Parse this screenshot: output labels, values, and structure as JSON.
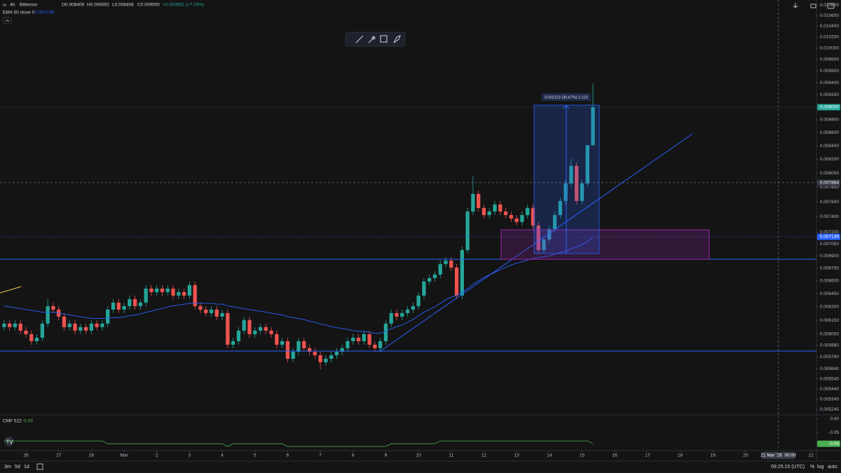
{
  "chart_data": [
    {
      "type": "candlestick",
      "symbol": "ω",
      "interval": "4h",
      "title": "Bittensor",
      "ohlc_legend": [
        "O0.008409",
        "H0.009392",
        "L0.008408",
        "C0.009000",
        "+0.000591 (+7.03%)"
      ],
      "colors": {
        "up": "#26a69a",
        "down": "#ef5350"
      },
      "log_scale": true,
      "xlim": [
        -0.76,
        149
      ],
      "ylim": [
        0.005175,
        0.0109
      ],
      "xticks": [
        {
          "value": 4,
          "label": "26"
        },
        {
          "value": 10,
          "label": "27"
        },
        {
          "value": 16,
          "label": "28"
        },
        {
          "value": 22,
          "label": "Mar"
        },
        {
          "value": 28,
          "label": "2"
        },
        {
          "value": 34,
          "label": "3"
        },
        {
          "value": 40,
          "label": "4"
        },
        {
          "value": 46,
          "label": "5"
        },
        {
          "value": 52,
          "label": "6"
        },
        {
          "value": 58,
          "label": "7"
        },
        {
          "value": 64,
          "label": "8"
        },
        {
          "value": 70,
          "label": "9"
        },
        {
          "value": 76,
          "label": "10"
        },
        {
          "value": 82,
          "label": "11"
        },
        {
          "value": 88,
          "label": "12"
        },
        {
          "value": 94,
          "label": "13"
        },
        {
          "value": 100,
          "label": "14"
        },
        {
          "value": 106,
          "label": "15"
        },
        {
          "value": 112,
          "label": "16"
        },
        {
          "value": 118,
          "label": "17"
        },
        {
          "value": 124,
          "label": "18"
        },
        {
          "value": 130,
          "label": "19"
        },
        {
          "value": 136,
          "label": "20"
        },
        {
          "value": 148,
          "label": "22"
        }
      ],
      "yticks": [
        {
          "value": 0.0108,
          "label": "0.010800"
        },
        {
          "value": 0.0106,
          "label": "0.010600"
        },
        {
          "value": 0.0104,
          "label": "0.010400"
        },
        {
          "value": 0.0102,
          "label": "0.010200"
        },
        {
          "value": 0.01,
          "label": "0.010000"
        },
        {
          "value": 0.0098,
          "label": "0.009800"
        },
        {
          "value": 0.0096,
          "label": "0.009600"
        },
        {
          "value": 0.0094,
          "label": "0.009400"
        },
        {
          "value": 0.0092,
          "label": "0.009200"
        },
        {
          "value": 0.0088,
          "label": "0.008800"
        },
        {
          "value": 0.0086,
          "label": "0.008600"
        },
        {
          "value": 0.0084,
          "label": "0.008400"
        },
        {
          "value": 0.0082,
          "label": "0.008200"
        },
        {
          "value": 0.008,
          "label": "0.008000"
        },
        {
          "value": 0.0078,
          "label": "0.007800"
        },
        {
          "value": 0.0076,
          "label": "0.007600"
        },
        {
          "value": 0.0074,
          "label": "0.007400"
        },
        {
          "value": 0.0072,
          "label": "0.007200"
        },
        {
          "value": 0.00705,
          "label": "0.007050"
        },
        {
          "value": 0.0069,
          "label": "0.006900"
        },
        {
          "value": 0.00675,
          "label": "0.006750"
        },
        {
          "value": 0.0066,
          "label": "0.006600"
        },
        {
          "value": 0.00645,
          "label": "0.006450"
        },
        {
          "value": 0.0063,
          "label": "0.006300"
        },
        {
          "value": 0.00615,
          "label": "0.006150"
        },
        {
          "value": 0.006,
          "label": "0.006000"
        },
        {
          "value": 0.00588,
          "label": "0.005880"
        },
        {
          "value": 0.00576,
          "label": "0.005760"
        },
        {
          "value": 0.00564,
          "label": "0.005640"
        },
        {
          "value": 0.00554,
          "label": "0.005540"
        },
        {
          "value": 0.00544,
          "label": "0.005440"
        },
        {
          "value": 0.00534,
          "label": "0.005340"
        },
        {
          "value": 0.005245,
          "label": "0.005245"
        }
      ],
      "open": [
        0.006076,
        0.006114,
        0.006076,
        0.006114,
        0.006038,
        0.006,
        0.005925,
        0.005962,
        0.006114,
        0.006308,
        0.006269,
        0.006191,
        0.006076,
        0.006114,
        0.006038,
        0.006076,
        0.006038,
        0.006114,
        0.006076,
        0.006114,
        0.006269,
        0.006348,
        0.006269,
        0.006308,
        0.006388,
        0.006308,
        0.006348,
        0.006509,
        0.006468,
        0.006509,
        0.006468,
        0.006509,
        0.006428,
        0.006468,
        0.006428,
        0.00655,
        0.006308,
        0.006269,
        0.00623,
        0.006269,
        0.006191,
        0.00623,
        0.005888,
        0.005925,
        0.006038,
        0.006152,
        0.006,
        0.006038,
        0.006076,
        0.006038,
        0.006,
        0.005888,
        0.005925,
        0.005742,
        0.005814,
        0.005925,
        0.005851,
        0.005814,
        0.005778,
        0.005706,
        0.005742,
        0.005778,
        0.005814,
        0.005851,
        0.005925,
        0.005962,
        0.005925,
        0.006,
        0.005888,
        0.005851,
        0.005925,
        0.006114,
        0.00623,
        0.006191,
        0.00623,
        0.006269,
        0.006308,
        0.006428,
        0.006591,
        0.006632,
        0.006674,
        0.0068,
        0.006843,
        0.006758,
        0.006428,
        0.006973,
        0.00747,
        0.007708,
        0.007517,
        0.007423,
        0.00747,
        0.007564,
        0.00747,
        0.007423,
        0.007377,
        0.007331,
        0.007423,
        0.007517,
        0.007285,
        0.006973,
        0.007105,
        0.00724,
        0.007423,
        0.007612,
        0.007854,
        0.008104,
        0.007612,
        0.007854,
        0.008409
      ],
      "high": [
        0.006152,
        0.006152,
        0.006152,
        0.006152,
        0.006076,
        0.006038,
        0.006,
        0.006152,
        0.006388,
        0.006348,
        0.006308,
        0.00623,
        0.006152,
        0.006152,
        0.006114,
        0.006114,
        0.006152,
        0.006152,
        0.006152,
        0.006308,
        0.006388,
        0.006388,
        0.006348,
        0.006428,
        0.006428,
        0.006388,
        0.00655,
        0.00655,
        0.00655,
        0.00655,
        0.00655,
        0.00655,
        0.006509,
        0.006509,
        0.006591,
        0.006591,
        0.006348,
        0.006308,
        0.006308,
        0.006308,
        0.006269,
        0.006269,
        0.005962,
        0.006076,
        0.006191,
        0.006191,
        0.006076,
        0.006114,
        0.006114,
        0.006076,
        0.006038,
        0.005962,
        0.005962,
        0.005851,
        0.005962,
        0.005962,
        0.005888,
        0.005851,
        0.005814,
        0.005778,
        0.005814,
        0.005851,
        0.005888,
        0.005962,
        0.006,
        0.006,
        0.006038,
        0.006038,
        0.005925,
        0.005962,
        0.006152,
        0.006269,
        0.006269,
        0.006269,
        0.006308,
        0.006348,
        0.006468,
        0.006632,
        0.006674,
        0.006716,
        0.006843,
        0.006886,
        0.006886,
        0.0068,
        0.007017,
        0.007517,
        0.007953,
        0.007756,
        0.007564,
        0.007517,
        0.007612,
        0.007612,
        0.007517,
        0.00747,
        0.007423,
        0.00747,
        0.007564,
        0.007564,
        0.007331,
        0.00715,
        0.007285,
        0.00747,
        0.00766,
        0.007903,
        0.008206,
        0.008155,
        0.007903,
        0.008414,
        0.009392
      ],
      "low": [
        0.006038,
        0.006038,
        0.006038,
        0.006,
        0.005962,
        0.005888,
        0.005888,
        0.005925,
        0.006076,
        0.00623,
        0.006152,
        0.006038,
        0.006038,
        0.006,
        0.006,
        0.006,
        0.006,
        0.006038,
        0.006038,
        0.006076,
        0.00623,
        0.00623,
        0.00623,
        0.006269,
        0.006269,
        0.006269,
        0.006308,
        0.006428,
        0.006428,
        0.006428,
        0.006428,
        0.006388,
        0.006388,
        0.006388,
        0.006388,
        0.006269,
        0.00623,
        0.006191,
        0.006191,
        0.006152,
        0.006152,
        0.005851,
        0.005851,
        0.005888,
        0.006,
        0.005962,
        0.005962,
        0.006,
        0.006,
        0.005962,
        0.005851,
        0.005851,
        0.005706,
        0.005706,
        0.005778,
        0.005814,
        0.005778,
        0.005742,
        0.005635,
        0.00567,
        0.005706,
        0.005742,
        0.005778,
        0.005814,
        0.005888,
        0.005888,
        0.005888,
        0.005851,
        0.005814,
        0.005814,
        0.005888,
        0.006076,
        0.006152,
        0.006152,
        0.006191,
        0.00623,
        0.006269,
        0.006388,
        0.00655,
        0.006591,
        0.006632,
        0.006758,
        0.006716,
        0.006388,
        0.006388,
        0.006929,
        0.007423,
        0.00747,
        0.007377,
        0.007377,
        0.007423,
        0.007423,
        0.007377,
        0.007331,
        0.007285,
        0.007285,
        0.007377,
        0.00724,
        0.006929,
        0.006929,
        0.007061,
        0.007195,
        0.007377,
        0.007564,
        0.007805,
        0.007564,
        0.007564,
        0.007805,
        0.008408
      ],
      "close": [
        0.006114,
        0.006076,
        0.006114,
        0.006038,
        0.006,
        0.005925,
        0.005962,
        0.006114,
        0.006308,
        0.006269,
        0.006191,
        0.006076,
        0.006114,
        0.006038,
        0.006076,
        0.006038,
        0.006114,
        0.006076,
        0.006114,
        0.006269,
        0.006348,
        0.006269,
        0.006308,
        0.006388,
        0.006308,
        0.006348,
        0.006509,
        0.006468,
        0.006509,
        0.006468,
        0.006509,
        0.006428,
        0.006468,
        0.006428,
        0.00655,
        0.006308,
        0.006269,
        0.00623,
        0.006269,
        0.006191,
        0.00623,
        0.005888,
        0.005925,
        0.006038,
        0.006152,
        0.006,
        0.006038,
        0.006076,
        0.006038,
        0.006,
        0.005888,
        0.005925,
        0.005742,
        0.005814,
        0.005925,
        0.005851,
        0.005814,
        0.005778,
        0.005706,
        0.005742,
        0.005778,
        0.005814,
        0.005851,
        0.005925,
        0.005962,
        0.005925,
        0.006,
        0.005888,
        0.005851,
        0.005925,
        0.006114,
        0.00623,
        0.006191,
        0.00623,
        0.006269,
        0.006308,
        0.006428,
        0.006591,
        0.006632,
        0.006674,
        0.0068,
        0.006843,
        0.006758,
        0.006428,
        0.006973,
        0.00747,
        0.007708,
        0.007517,
        0.007423,
        0.00747,
        0.007564,
        0.00747,
        0.007423,
        0.007377,
        0.007331,
        0.007423,
        0.007517,
        0.007285,
        0.006973,
        0.007105,
        0.00724,
        0.007423,
        0.007612,
        0.007854,
        0.008104,
        0.007612,
        0.007854,
        0.008409,
        0.009
      ],
      "series": [
        {
          "name": "EMA 50 close 0",
          "color": "#2962ff",
          "values": [
            0.00631,
            0.0063,
            0.00629,
            0.00628,
            0.00627,
            0.00626,
            0.00625,
            0.00624,
            0.00624,
            0.00624,
            0.00623,
            0.00622,
            0.00621,
            0.0062,
            0.00619,
            0.00618,
            0.00617,
            0.00617,
            0.00617,
            0.00617,
            0.00618,
            0.00618,
            0.00619,
            0.0062,
            0.00621,
            0.00622,
            0.00624,
            0.00625,
            0.00627,
            0.00628,
            0.0063,
            0.00631,
            0.00632,
            0.00633,
            0.00634,
            0.00634,
            0.00634,
            0.00634,
            0.00634,
            0.00633,
            0.00633,
            0.00631,
            0.0063,
            0.00629,
            0.00628,
            0.00627,
            0.00626,
            0.00625,
            0.00624,
            0.00623,
            0.00622,
            0.00621,
            0.00619,
            0.00618,
            0.00617,
            0.00616,
            0.00614,
            0.00613,
            0.00611,
            0.0061,
            0.00608,
            0.00607,
            0.00606,
            0.00605,
            0.00604,
            0.00603,
            0.00603,
            0.00602,
            0.00601,
            0.00601,
            0.00603,
            0.00606,
            0.00608,
            0.0061,
            0.00613,
            0.00616,
            0.0062,
            0.00624,
            0.00627,
            0.0063,
            0.00634,
            0.00638,
            0.00641,
            0.00643,
            0.00647,
            0.00651,
            0.00656,
            0.0066,
            0.00664,
            0.00667,
            0.0067,
            0.00673,
            0.00676,
            0.00679,
            0.00681,
            0.00683,
            0.00685,
            0.00687,
            0.00688,
            0.00689,
            0.0069,
            0.00692,
            0.00694,
            0.00696,
            0.00699,
            0.00701,
            0.00704,
            0.00708,
            0.007139
          ]
        }
      ],
      "price_markers": [
        {
          "value": 0.009,
          "label": "0.009000",
          "color": "#26a69a"
        },
        {
          "value": 0.007139,
          "label": "0.007139",
          "color": "#2962ff"
        }
      ],
      "crosshair": {
        "x": {
          "value": 142,
          "label": "21 Mar '26  00:00"
        },
        "y": {
          "value": 0.007864,
          "label": "0.007864"
        }
      },
      "measure_label": "0.002122 (30.67%) 2,122"
    },
    {
      "type": "line",
      "title": "CMF 522",
      "color": "#4caf50",
      "ylim": [
        -0.115,
        0.015
      ],
      "yticks": [
        {
          "value": 0,
          "label": "0.00"
        },
        -0.05
      ],
      "values": [
        -0.08,
        -0.08,
        -0.08,
        -0.08,
        -0.08,
        -0.08,
        -0.08,
        -0.08,
        -0.08,
        -0.08,
        -0.08,
        -0.08,
        -0.08,
        -0.08,
        -0.08,
        -0.08,
        -0.08,
        -0.08,
        -0.08,
        -0.09,
        -0.09,
        -0.09,
        -0.09,
        -0.09,
        -0.09,
        -0.09,
        -0.09,
        -0.09,
        -0.09,
        -0.09,
        -0.09,
        -0.09,
        -0.09,
        -0.09,
        -0.09,
        -0.09,
        -0.09,
        -0.09,
        -0.09,
        -0.09,
        -0.09,
        -0.1,
        -0.09,
        -0.09,
        -0.09,
        -0.09,
        -0.09,
        -0.09,
        -0.09,
        -0.09,
        -0.09,
        -0.09,
        -0.1,
        -0.1,
        -0.1,
        -0.1,
        -0.1,
        -0.1,
        -0.1,
        -0.1,
        -0.1,
        -0.1,
        -0.1,
        -0.1,
        -0.1,
        -0.1,
        -0.1,
        -0.1,
        -0.1,
        -0.1,
        -0.1,
        -0.09,
        -0.09,
        -0.09,
        -0.09,
        -0.09,
        -0.09,
        -0.09,
        -0.09,
        -0.09,
        -0.08,
        -0.08,
        -0.08,
        -0.08,
        -0.08,
        -0.08,
        -0.08,
        -0.08,
        -0.08,
        -0.08,
        -0.08,
        -0.08,
        -0.08,
        -0.08,
        -0.08,
        -0.08,
        -0.08,
        -0.08,
        -0.08,
        -0.08,
        -0.08,
        -0.08,
        -0.08,
        -0.08,
        -0.08,
        -0.08,
        -0.08,
        -0.08,
        -0.09
      ]
    }
  ],
  "toolbar": {
    "ranges": [
      "3m",
      "5d",
      "1d"
    ],
    "clock": "09:25:15 (UTC)",
    "options": [
      "%",
      "log",
      "auto"
    ]
  }
}
